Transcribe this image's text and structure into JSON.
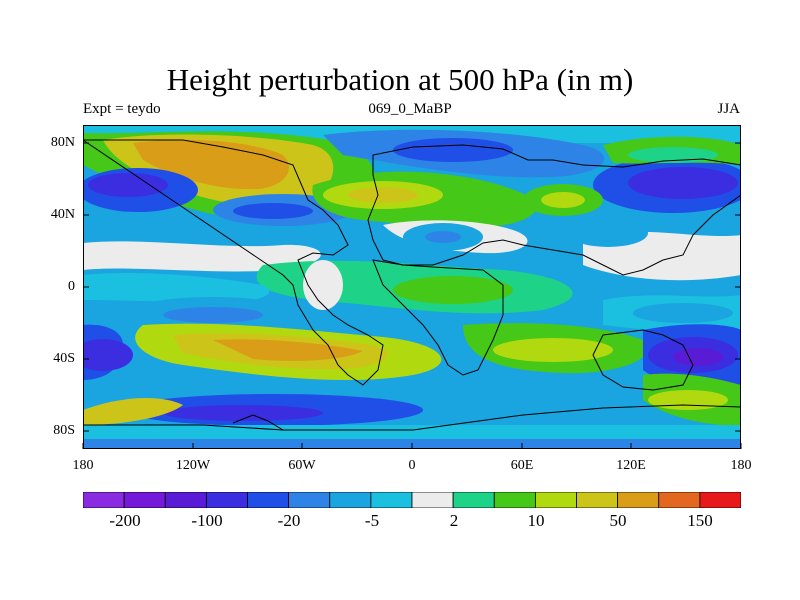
{
  "title": "Height perturbation at 500 hPa (in m)",
  "left_string": "Expt = teydo",
  "center_string": "069_0_MaBP",
  "right_string": "JJA",
  "map": {
    "lat_ticks": [
      "80N",
      "40N",
      "0",
      "40S",
      "80S"
    ],
    "lon_ticks": [
      "180",
      "120W",
      "60W",
      "0",
      "60E",
      "120E",
      "180"
    ],
    "lat_range": [
      -90,
      90
    ],
    "lon_range": [
      -180,
      180
    ]
  },
  "colorbar": {
    "colors": [
      "#8a2be2",
      "#7418d9",
      "#5a1bd6",
      "#3a2ee0",
      "#1f4fe6",
      "#2e84e6",
      "#1aa4e0",
      "#1bbfe0",
      "#ececec",
      "#1ed388",
      "#45c817",
      "#b1d90f",
      "#cdc41a",
      "#d99d18",
      "#e4671f",
      "#e8191b"
    ],
    "labels": [
      "-200",
      "-100",
      "-20",
      "-5",
      "2",
      "10",
      "50",
      "150"
    ],
    "label_colors_index": [
      1,
      3,
      5,
      7,
      9,
      11,
      13,
      15
    ]
  }
}
